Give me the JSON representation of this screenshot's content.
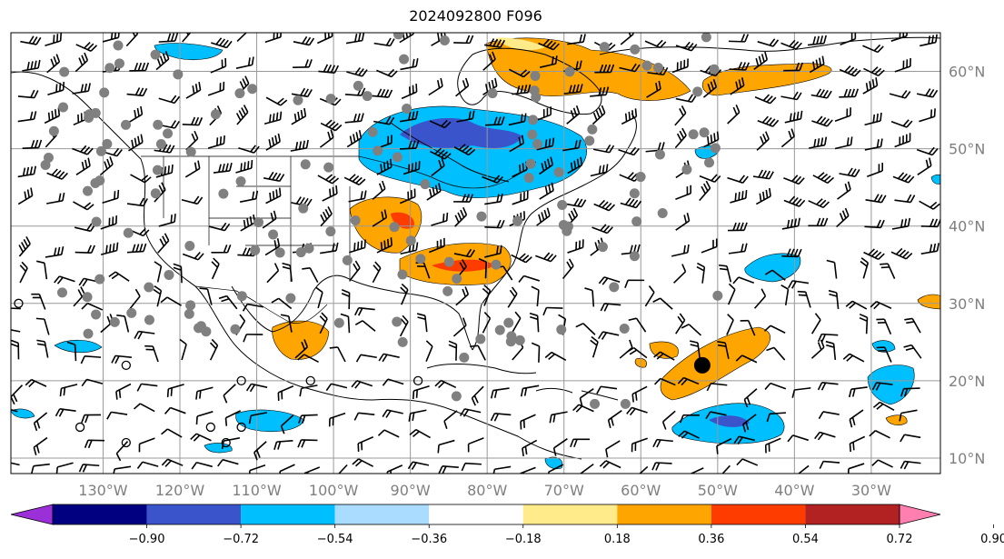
{
  "title": "2024092800 F096",
  "map": {
    "lon_range": [
      -142,
      -21
    ],
    "lat_range": [
      8,
      65
    ],
    "lon_ticks": [
      {
        "value": -130,
        "label": "130°W"
      },
      {
        "value": -120,
        "label": "120°W"
      },
      {
        "value": -110,
        "label": "110°W"
      },
      {
        "value": -100,
        "label": "100°W"
      },
      {
        "value": -90,
        "label": "90°W"
      },
      {
        "value": -80,
        "label": "80°W"
      },
      {
        "value": -70,
        "label": "70°W"
      },
      {
        "value": -60,
        "label": "60°W"
      },
      {
        "value": -50,
        "label": "50°W"
      },
      {
        "value": -40,
        "label": "40°W"
      },
      {
        "value": -30,
        "label": "30°W"
      }
    ],
    "lat_ticks": [
      {
        "value": 60,
        "label": "60°N"
      },
      {
        "value": 50,
        "label": "50°N"
      },
      {
        "value": 40,
        "label": "40°N"
      },
      {
        "value": 30,
        "label": "30°N"
      },
      {
        "value": 20,
        "label": "20°N"
      },
      {
        "value": 10,
        "label": "10°N"
      }
    ],
    "storm_marker": {
      "lon": -52,
      "lat": 22,
      "color": "#000000"
    }
  },
  "colorbar": {
    "colors": [
      "#9b30d9",
      "#000080",
      "#3a55cc",
      "#00bfff",
      "#aadcff",
      "#ffffff",
      "#ffeb8a",
      "#ffa500",
      "#ff3c00",
      "#b22222",
      "#ff80b0"
    ],
    "labels": [
      "−0.90",
      "−0.72",
      "−0.54",
      "−0.36",
      "−0.18",
      "0.18",
      "0.36",
      "0.54",
      "0.72",
      "0.90"
    ]
  },
  "colors": {
    "grid": "#999999",
    "coast": "#000000",
    "station": "#808080"
  }
}
